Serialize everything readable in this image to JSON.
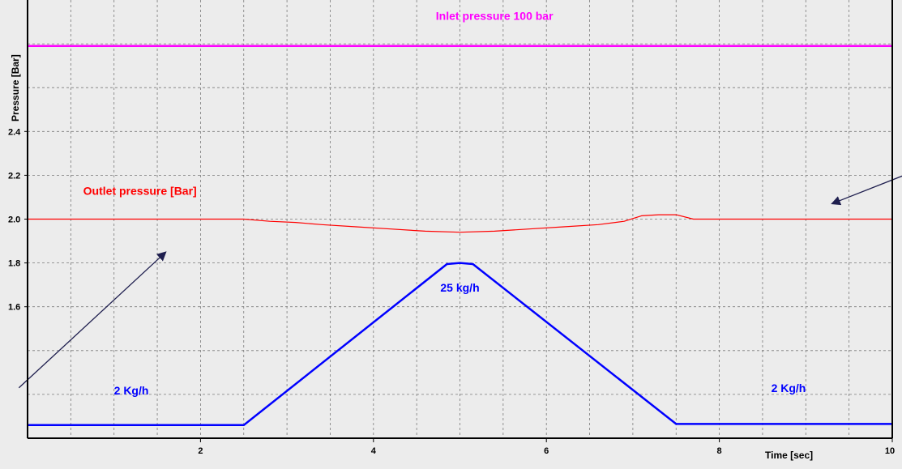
{
  "chart_data": {
    "type": "line",
    "title": "",
    "xlabel": "Time [sec]",
    "ylabel": "Pressure [Bar]",
    "xlim": [
      0,
      10
    ],
    "ylim": [
      1.0,
      3.0
    ],
    "grid": true,
    "x_ticks": [
      {
        "value": 2,
        "label": "2"
      },
      {
        "value": 4,
        "label": "4"
      },
      {
        "value": 6,
        "label": "6"
      },
      {
        "value": 8,
        "label": "8"
      },
      {
        "value": 10,
        "label": "10"
      }
    ],
    "y_ticks": [
      {
        "value": 1.6,
        "label": "1.6"
      },
      {
        "value": 1.8,
        "label": "1.8"
      },
      {
        "value": 2.0,
        "label": "2.0"
      },
      {
        "value": 2.2,
        "label": "2.2"
      },
      {
        "value": 2.4,
        "label": "2.4"
      }
    ],
    "series": [
      {
        "key": "inlet",
        "color": "#ff00ff",
        "width": 2.5,
        "x": [
          0,
          10
        ],
        "y": [
          2.79,
          2.79
        ]
      },
      {
        "key": "outlet",
        "color": "#ff0000",
        "width": 1.2,
        "x": [
          0,
          2.5,
          2.8,
          3.1,
          3.4,
          3.8,
          4.2,
          4.6,
          5.0,
          5.4,
          5.8,
          6.2,
          6.6,
          6.9,
          7.1,
          7.3,
          7.5,
          7.7,
          8.0,
          10
        ],
        "y": [
          2.0,
          2.0,
          1.99,
          1.985,
          1.975,
          1.965,
          1.955,
          1.945,
          1.94,
          1.945,
          1.955,
          1.965,
          1.975,
          1.99,
          2.015,
          2.02,
          2.02,
          2.0,
          2.0,
          2.0
        ]
      },
      {
        "key": "flow",
        "color": "#0000ff",
        "width": 2.5,
        "x": [
          0,
          2.5,
          4.85,
          5.0,
          5.15,
          7.5,
          10
        ],
        "y": [
          1.06,
          1.06,
          1.795,
          1.8,
          1.795,
          1.065,
          1.065
        ]
      }
    ],
    "annotations": [
      {
        "key": "inlet_label",
        "text": "Inlet pressure 100 bar",
        "x": 5.4,
        "y": 2.91,
        "color": "#ff00ff"
      },
      {
        "key": "outlet_label",
        "text": "Outlet pressure [Bar]",
        "x": 1.3,
        "y": 2.11,
        "color": "#ff0000"
      },
      {
        "key": "peak_label",
        "text": "25 kg/h",
        "x": 5.0,
        "y": 1.67,
        "color": "#0000ff"
      },
      {
        "key": "left_flow_label",
        "text": "2 Kg/h",
        "x": 1.2,
        "y": 1.2,
        "color": "#0000ff"
      },
      {
        "key": "right_flow_label",
        "text": "2 Kg/h",
        "x": 8.8,
        "y": 1.21,
        "color": "#0000ff"
      }
    ],
    "arrows": [
      {
        "from": [
          -0.1,
          1.23
        ],
        "to": [
          1.6,
          1.85
        ],
        "color": "#1f1f4f"
      },
      {
        "from": [
          10.2,
          2.21
        ],
        "to": [
          9.3,
          2.07
        ],
        "color": "#1f1f4f"
      }
    ]
  }
}
